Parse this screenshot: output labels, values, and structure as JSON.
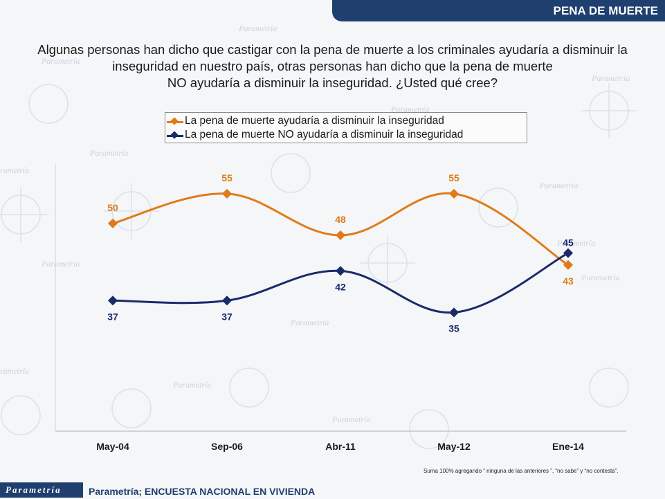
{
  "header": {
    "title": "PENA DE MUERTE"
  },
  "question": {
    "line1": "Algunas personas han dicho que castigar con la pena de muerte a los criminales ayudaría a disminuir la",
    "line2": "inseguridad en nuestro país, otras personas han dicho que la pena de muerte",
    "line3": "NO ayudaría a disminuir la inseguridad. ¿Usted qué cree?"
  },
  "colors": {
    "orange": "#e07b1a",
    "navy": "#1b2a6b",
    "brand": "#1f3f6e"
  },
  "chart_data": {
    "type": "line",
    "categories": [
      "May-04",
      "Sep-06",
      "Abr-11",
      "May-12",
      "Ene-14"
    ],
    "series": [
      {
        "name": "La pena de muerte ayudaría a disminuir la inseguridad",
        "values": [
          50,
          55,
          48,
          55,
          43
        ],
        "color": "#e07b1a"
      },
      {
        "name": "La pena de muerte NO ayudaría a disminuir la inseguridad",
        "values": [
          37,
          37,
          42,
          35,
          45
        ],
        "color": "#1b2a6b"
      }
    ],
    "ylim": [
      15,
      60
    ],
    "legend_position": "top-center",
    "smooth": true
  },
  "footnote": "Suma 100%  agregando “ ninguna de las anteriores ”, “no sabe” y “no contesta”.",
  "footer": {
    "logo": "Parametría",
    "source": "Parametría; ENCUESTA NACIONAL  EN VIVIENDA"
  }
}
